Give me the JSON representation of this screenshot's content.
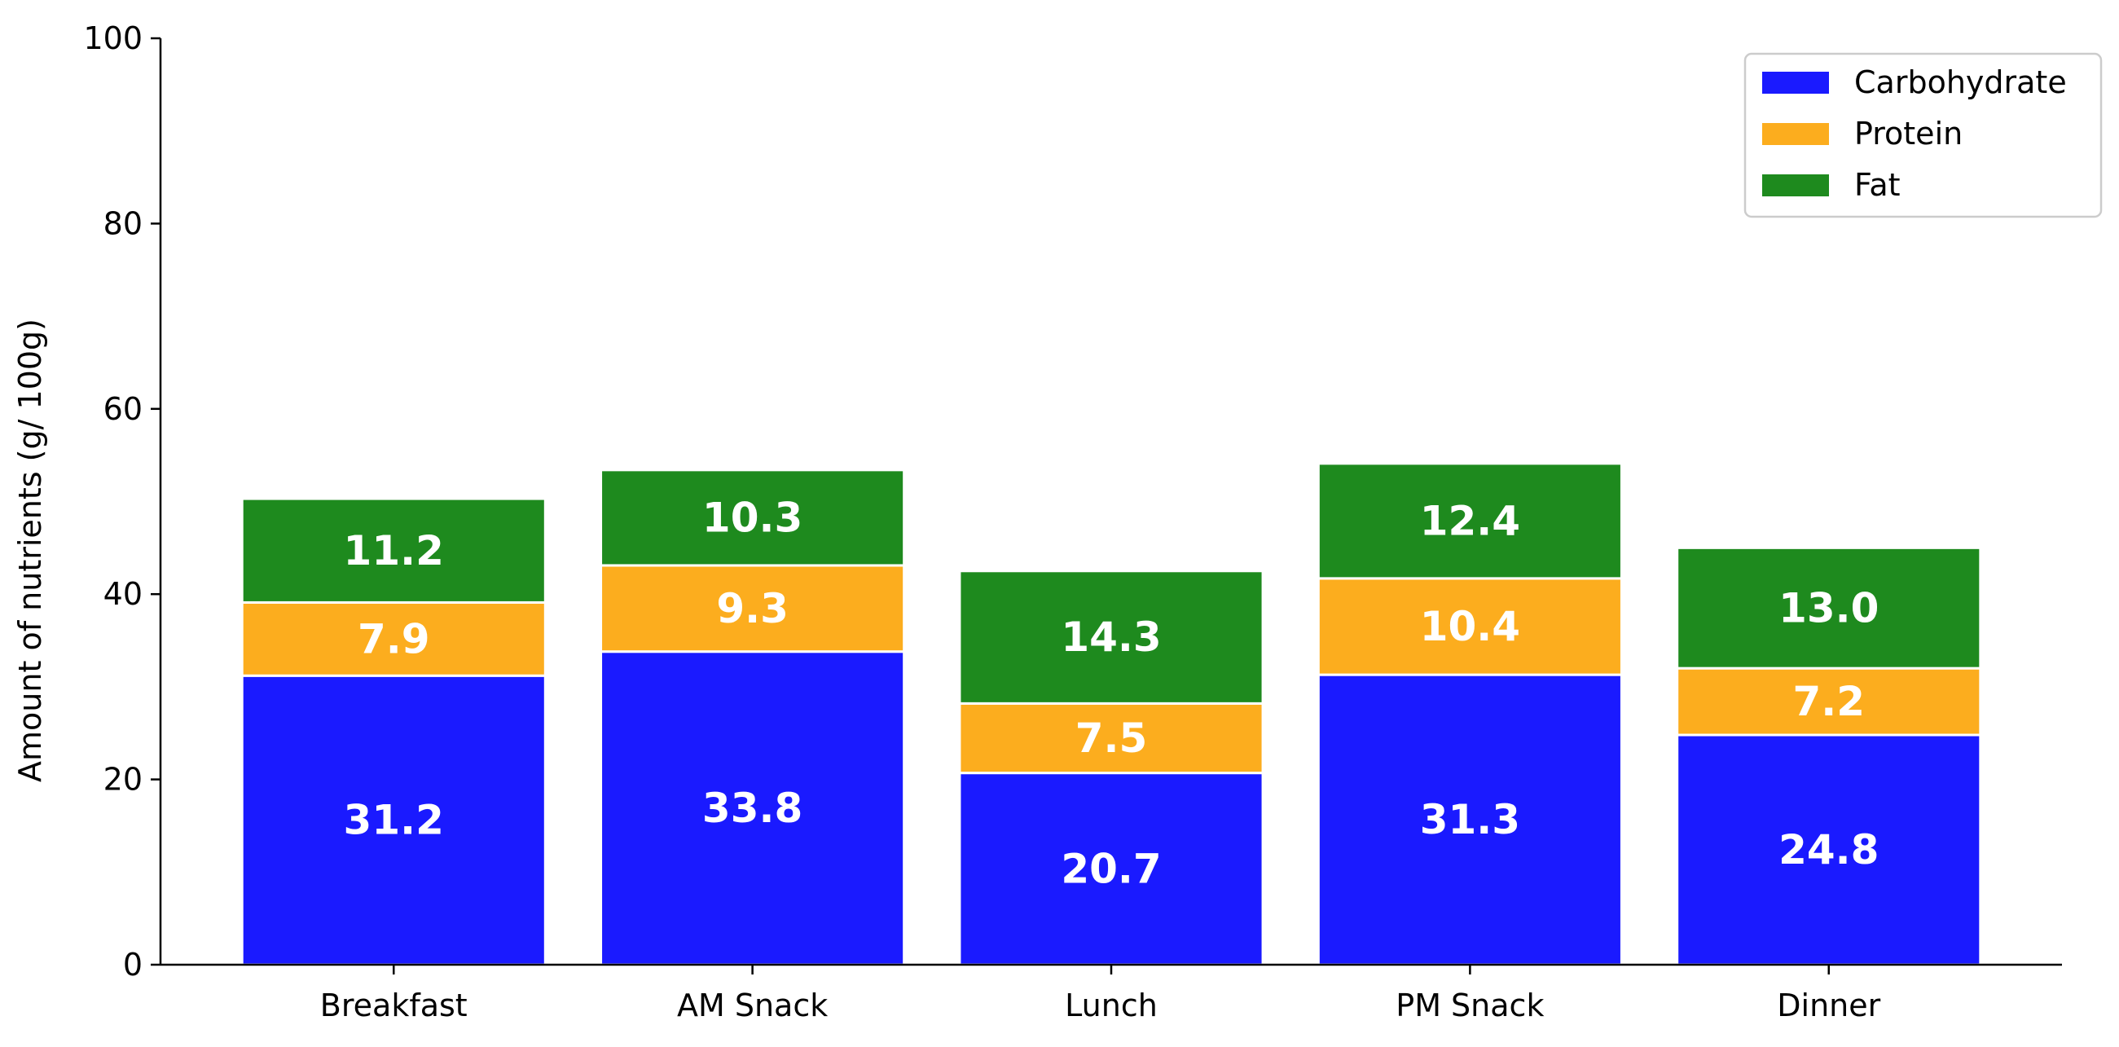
{
  "chart_data": {
    "type": "bar",
    "stacked": true,
    "title": "",
    "xlabel": "",
    "ylabel": "Amount of nutrients (g/ 100g)",
    "ylim": [
      0,
      100
    ],
    "yticks": [
      0,
      20,
      40,
      60,
      80,
      100
    ],
    "grid": false,
    "legend_position": "top-right",
    "categories": [
      "Breakfast",
      "AM Snack",
      "Lunch",
      "PM Snack",
      "Dinner"
    ],
    "series": [
      {
        "name": "Carbohydrate",
        "color": "#1a1aff",
        "values": [
          31.2,
          33.8,
          20.7,
          31.3,
          24.8
        ]
      },
      {
        "name": "Protein",
        "color": "#fcad1e",
        "values": [
          7.9,
          9.3,
          7.5,
          10.4,
          7.2
        ]
      },
      {
        "name": "Fat",
        "color": "#1e8a1e",
        "values": [
          11.2,
          10.3,
          14.3,
          12.4,
          13.0
        ]
      }
    ]
  }
}
